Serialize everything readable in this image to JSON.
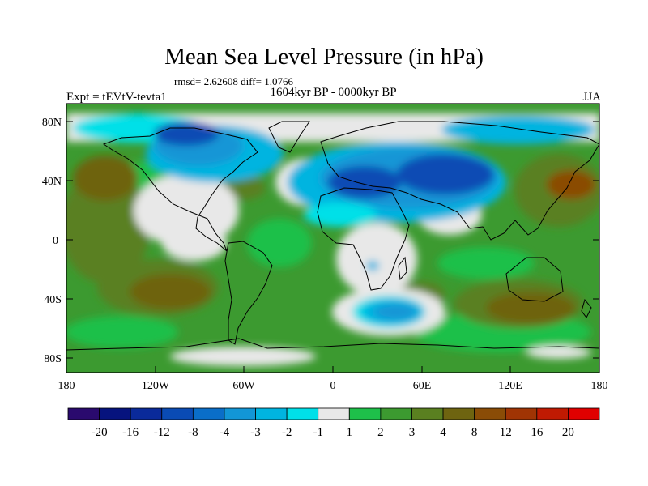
{
  "title": "Mean Sea Level Pressure (in hPa)",
  "stats": "rmsd= 2.62608 diff= 1.0766",
  "left_string": "Expt = tEVtV-tevta1",
  "center_string": "1604kyr BP - 0000kyr BP",
  "right_string": "JJA",
  "axes": {
    "y_ticks": [
      "80N",
      "40N",
      "0",
      "40S",
      "80S"
    ],
    "x_ticks": [
      "180",
      "120W",
      "60W",
      "0",
      "60E",
      "120E",
      "180"
    ]
  },
  "colorbar": {
    "colors": [
      "#2a0a6e",
      "#06137e",
      "#0a2a9a",
      "#0a4bb4",
      "#0a6ec8",
      "#1296d6",
      "#00b4e0",
      "#00e0e8",
      "#e8e8e8",
      "#1ec04a",
      "#3c9a30",
      "#5a8020",
      "#6e6410",
      "#8a4c06",
      "#a03404",
      "#c01a02",
      "#e00000"
    ],
    "labels": [
      "-20",
      "-16",
      "-12",
      "-8",
      "-4",
      "-3",
      "-2",
      "-1",
      "1",
      "2",
      "3",
      "4",
      "8",
      "12",
      "16",
      "20"
    ]
  },
  "field_colors": {
    "ocean_base": "#3c9a30",
    "high_green": "#1ec04a",
    "white": "#e8e8e8",
    "low1": "#00e0e8",
    "low2": "#00b4e0",
    "low3": "#1296d6",
    "low4": "#0a4bb4",
    "low5": "#06137e",
    "high3": "#5a8020",
    "high4": "#6e6410",
    "high5": "#8a4c06"
  }
}
